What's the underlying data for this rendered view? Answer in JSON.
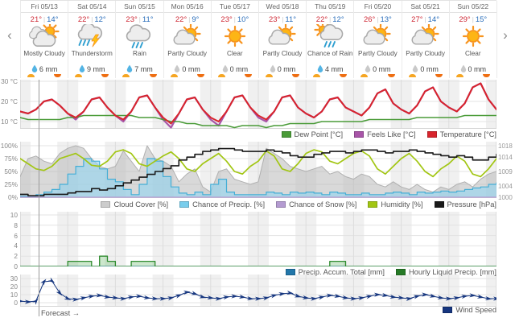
{
  "nav": {
    "prev": "‹",
    "next": "›"
  },
  "labels": {
    "forecast_marker": "Forecast →"
  },
  "colors": {
    "high_temp": "#cf2a36",
    "low_temp": "#2a6ebb",
    "night_band": "#f0f0f0",
    "now_line": "#9a9a9a",
    "sunrise": "#f6a623",
    "sunset": "#ee6e12",
    "wet_droplet": "#53b4e4",
    "dry_droplet": "#c9c9c9"
  },
  "days": [
    {
      "date": "Fri 05/13",
      "high": "21°",
      "low": "14°",
      "icon": "mostly-cloudy",
      "condition": "Mostly Cloudy",
      "precip": "6 mm",
      "wet": true
    },
    {
      "date": "Sat 05/14",
      "high": "22°",
      "low": "12°",
      "icon": "thunderstorm",
      "condition": "Thunderstorm",
      "precip": "9 mm",
      "wet": true
    },
    {
      "date": "Sun 05/15",
      "high": "23°",
      "low": "11°",
      "icon": "rain",
      "condition": "Rain",
      "precip": "7 mm",
      "wet": true
    },
    {
      "date": "Mon 05/16",
      "high": "22°",
      "low": "9°",
      "icon": "partly-cloudy",
      "condition": "Partly Cloudy",
      "precip": "0 mm",
      "wet": false
    },
    {
      "date": "Tue 05/17",
      "high": "23°",
      "low": "10°",
      "icon": "clear",
      "condition": "Clear",
      "precip": "0 mm",
      "wet": false
    },
    {
      "date": "Wed 05/18",
      "high": "23°",
      "low": "11°",
      "icon": "partly-cloudy",
      "condition": "Partly Cloudy",
      "precip": "0 mm",
      "wet": false
    },
    {
      "date": "Thu 05/19",
      "high": "22°",
      "low": "12°",
      "icon": "chance-of-rain",
      "condition": "Chance of Rain",
      "precip": "4 mm",
      "wet": true
    },
    {
      "date": "Fri 05/20",
      "high": "26°",
      "low": "13°",
      "icon": "partly-cloudy",
      "condition": "Partly Cloudy",
      "precip": "0 mm",
      "wet": false
    },
    {
      "date": "Sat 05/21",
      "high": "27°",
      "low": "14°",
      "icon": "partly-cloudy",
      "condition": "Partly Cloudy",
      "precip": "0 mm",
      "wet": false
    },
    {
      "date": "Sun 05/22",
      "high": "29°",
      "low": "15°",
      "icon": "clear",
      "condition": "Clear",
      "precip": "0 mm",
      "wet": false
    }
  ],
  "legends": [
    [
      {
        "label": "Dew Point [°C]",
        "color": "#4a9b38"
      },
      {
        "label": "Feels Like [°C]",
        "color": "#a855a8"
      },
      {
        "label": "Temperature [°C]",
        "color": "#d8242c"
      }
    ],
    [
      {
        "label": "Cloud Cover [%]",
        "color": "#cccccc"
      },
      {
        "label": "Chance of Precip. [%]",
        "color": "#79cdec"
      },
      {
        "label": "Chance of Snow [%]",
        "color": "#b49bd1"
      },
      {
        "label": "Humidity [%]",
        "color": "#a2c613"
      },
      {
        "label": "Pressure [hPa]",
        "color": "#1a1a1a"
      }
    ],
    [
      {
        "label": "Precip. Accum. Total [mm]",
        "color": "#2277aa"
      },
      {
        "label": "Hourly Liquid Precip. [mm]",
        "color": "#267a26"
      }
    ],
    [
      {
        "label": "Wind Speed",
        "color": "#16367f"
      }
    ]
  ],
  "chart_data": [
    {
      "type": "line",
      "title": "Temperature / Feels Like / Dew Point",
      "x_axis": {
        "days": 10,
        "samples_per_day": 6,
        "unit": "4-hour steps"
      },
      "ylabel": "°C",
      "ylim": [
        6,
        30
      ],
      "left_ticks": [
        {
          "v": 30,
          "label": "30 °C"
        },
        {
          "v": 20,
          "label": "20 °C"
        },
        {
          "v": 10,
          "label": "10 °C"
        }
      ],
      "series": [
        {
          "name": "Feels Like [°C]",
          "color": "#a855a8",
          "style": "line",
          "width": 2.2,
          "values": [
            15,
            14,
            16,
            20,
            21,
            18,
            14,
            11,
            15,
            21,
            22,
            17,
            13,
            10,
            15,
            22,
            23,
            17,
            11,
            7,
            14,
            21,
            22,
            16,
            11,
            8,
            15,
            22,
            23,
            17,
            12,
            10,
            15,
            22,
            23,
            17,
            14,
            12,
            15,
            21,
            22,
            17,
            15,
            13,
            17,
            24,
            26,
            19,
            16,
            14,
            18,
            25,
            27,
            20,
            17,
            15,
            19,
            27,
            29,
            21,
            16
          ]
        },
        {
          "name": "Dew Point [°C]",
          "color": "#4a9b38",
          "style": "line",
          "width": 1.6,
          "values": [
            12,
            11,
            11,
            11,
            11,
            11,
            12,
            12,
            13,
            13,
            13,
            13,
            13,
            13,
            13,
            12,
            12,
            12,
            11,
            10,
            10,
            9,
            9,
            8,
            8,
            8,
            8,
            7,
            8,
            8,
            8,
            7,
            8,
            8,
            9,
            9,
            9,
            9,
            10,
            10,
            10,
            10,
            10,
            10,
            11,
            11,
            11,
            11,
            11,
            11,
            12,
            12,
            12,
            12,
            12,
            12,
            13,
            13,
            13,
            13,
            13
          ]
        },
        {
          "name": "Temperature [°C]",
          "color": "#d8242c",
          "style": "line",
          "width": 2,
          "values": [
            15,
            14,
            16,
            20,
            21,
            18,
            14,
            12,
            15,
            21,
            22,
            17,
            13,
            11,
            15,
            22,
            23,
            17,
            12,
            9,
            14,
            21,
            22,
            16,
            12,
            10,
            15,
            22,
            23,
            17,
            13,
            11,
            15,
            22,
            23,
            17,
            14,
            12,
            15,
            21,
            22,
            17,
            15,
            13,
            17,
            24,
            26,
            19,
            16,
            14,
            18,
            25,
            27,
            20,
            17,
            15,
            19,
            27,
            29,
            21,
            16
          ]
        }
      ]
    },
    {
      "type": "mixed",
      "title": "Cloud Cover / Chance of Precip. / Chance of Snow / Humidity / Pressure",
      "x_axis": {
        "days": 10,
        "samples_per_day": 6,
        "unit": "4-hour steps"
      },
      "ylim": [
        0,
        100
      ],
      "right_ylim": [
        1000,
        1018
      ],
      "left_ticks": [
        {
          "v": 100,
          "label": "100%"
        },
        {
          "v": 75,
          "label": "75%"
        },
        {
          "v": 50,
          "label": "50%"
        },
        {
          "v": 25,
          "label": "25%"
        },
        {
          "v": 0,
          "label": "0%"
        }
      ],
      "right_ticks": [
        {
          "v": 1018,
          "label": "1018"
        },
        {
          "v": 1014,
          "label": "1014"
        },
        {
          "v": 1009,
          "label": "1009"
        },
        {
          "v": 1004,
          "label": "1004"
        },
        {
          "v": 1000,
          "label": "1000"
        }
      ],
      "series": [
        {
          "name": "Cloud Cover [%]",
          "color": "#b0b0b0",
          "style": "area",
          "width": 1,
          "fill": "rgba(185,185,185,0.55)",
          "values": [
            40,
            75,
            80,
            70,
            65,
            85,
            95,
            100,
            95,
            75,
            60,
            55,
            60,
            90,
            70,
            50,
            100,
            75,
            70,
            60,
            30,
            45,
            55,
            20,
            10,
            50,
            55,
            35,
            30,
            25,
            30,
            95,
            85,
            75,
            60,
            55,
            50,
            55,
            60,
            45,
            50,
            40,
            35,
            45,
            40,
            25,
            20,
            30,
            20,
            15,
            25,
            15,
            10,
            20,
            15,
            25,
            30,
            20,
            35,
            45,
            50
          ]
        },
        {
          "name": "Chance of Precip. [%]",
          "color": "#45aed6",
          "style": "step-area",
          "width": 1.2,
          "fill": "rgba(150,212,238,0.65)",
          "values": [
            2,
            2,
            5,
            10,
            15,
            25,
            45,
            60,
            75,
            70,
            55,
            35,
            30,
            15,
            5,
            25,
            75,
            70,
            40,
            20,
            8,
            5,
            10,
            5,
            25,
            35,
            10,
            5,
            5,
            5,
            5,
            10,
            8,
            5,
            10,
            8,
            10,
            8,
            5,
            10,
            8,
            5,
            5,
            8,
            5,
            5,
            8,
            10,
            8,
            5,
            10,
            8,
            10,
            12,
            10,
            12,
            15,
            18,
            20,
            25,
            28
          ]
        },
        {
          "name": "Chance of Snow [%]",
          "color": "#b49bd1",
          "style": "line",
          "width": 1.2,
          "values": [
            0,
            0,
            0,
            0,
            0,
            0,
            0,
            0,
            0,
            0,
            0,
            0,
            0,
            0,
            0,
            0,
            0,
            0,
            0,
            0,
            0,
            0,
            0,
            0,
            0,
            0,
            0,
            0,
            0,
            0,
            0,
            0,
            0,
            0,
            0,
            0,
            0,
            0,
            0,
            0,
            0,
            0,
            0,
            0,
            0,
            0,
            0,
            0,
            0,
            0,
            0,
            0,
            0,
            0,
            0,
            0,
            0,
            0,
            0,
            0,
            0
          ]
        },
        {
          "name": "Humidity [%]",
          "color": "#a2c613",
          "style": "line",
          "width": 1.7,
          "values": [
            75,
            65,
            55,
            52,
            60,
            75,
            80,
            85,
            75,
            62,
            60,
            70,
            88,
            92,
            85,
            65,
            60,
            70,
            80,
            88,
            75,
            55,
            50,
            65,
            75,
            85,
            70,
            50,
            45,
            60,
            70,
            90,
            80,
            55,
            50,
            65,
            85,
            92,
            88,
            70,
            65,
            75,
            85,
            90,
            80,
            55,
            45,
            60,
            75,
            85,
            70,
            50,
            40,
            55,
            65,
            80,
            70,
            45,
            40,
            55,
            75
          ]
        },
        {
          "name": "Pressure [hPa]",
          "color": "#1a1a1a",
          "style": "step",
          "width": 1.6,
          "axis": "right",
          "values": [
            1001,
            1000.5,
            1000.5,
            1001,
            1001,
            1001,
            1001.5,
            1002,
            1002,
            1003,
            1002.5,
            1003,
            1004,
            1005,
            1006,
            1007,
            1008,
            1009,
            1010,
            1011,
            1013,
            1014,
            1015,
            1016,
            1016.5,
            1017,
            1017,
            1016.5,
            1016,
            1016,
            1016,
            1016.5,
            1016,
            1015.5,
            1014.5,
            1014,
            1014,
            1015,
            1015.5,
            1016,
            1016,
            1015.5,
            1016,
            1016.5,
            1016.5,
            1016,
            1015.5,
            1016,
            1016,
            1016.5,
            1016,
            1015.5,
            1015,
            1014.5,
            1014,
            1014.5,
            1014,
            1013,
            1013,
            1014,
            1015
          ]
        }
      ]
    },
    {
      "type": "area",
      "title": "Precipitation",
      "x_axis": {
        "days": 10,
        "samples_per_day": 6,
        "unit": "4-hour steps"
      },
      "ylabel": "mm",
      "ylim": [
        0,
        10
      ],
      "left_ticks": [
        {
          "v": 10,
          "label": "10"
        },
        {
          "v": 8,
          "label": "8"
        },
        {
          "v": 6,
          "label": "6"
        },
        {
          "v": 4,
          "label": "4"
        },
        {
          "v": 2,
          "label": "2"
        },
        {
          "v": 0,
          "label": "0"
        }
      ],
      "series": [
        {
          "name": "Precip. Accum. Total [mm]",
          "color": "#2277aa",
          "style": "line",
          "width": 1.2,
          "values": [
            0,
            0,
            0,
            0,
            0,
            0,
            0,
            0,
            0,
            0,
            0,
            0,
            0,
            0,
            0,
            0,
            0,
            0,
            0,
            0,
            0,
            0,
            0,
            0,
            0,
            0,
            0,
            0,
            0,
            0,
            0,
            0,
            0,
            0,
            0,
            0,
            0,
            0,
            0,
            0,
            0,
            0,
            0,
            0,
            0,
            0,
            0,
            0,
            0,
            0,
            0,
            0,
            0,
            0,
            0,
            0,
            0,
            0,
            0,
            0,
            0
          ]
        },
        {
          "name": "Hourly Liquid Precip. [mm]",
          "color": "#2e8b2e",
          "style": "step-area",
          "width": 1.3,
          "fill": "rgba(110,185,110,0.35)",
          "values": [
            0,
            0,
            0,
            0,
            0,
            0,
            1,
            1,
            1,
            0,
            2,
            1,
            0,
            0,
            1,
            1,
            1,
            0,
            0,
            0,
            0,
            0,
            0,
            0,
            0,
            0,
            0,
            0,
            0,
            0,
            0,
            0,
            0,
            0,
            0,
            0,
            0,
            0,
            0,
            1,
            1,
            0,
            0,
            0,
            0,
            0,
            0,
            0,
            0,
            0,
            0,
            0,
            0,
            0,
            0,
            0,
            0,
            0,
            0,
            0,
            0
          ]
        }
      ]
    },
    {
      "type": "line",
      "title": "Wind Speed",
      "x_axis": {
        "days": 10,
        "samples_per_day": 6,
        "unit": "4-hour steps"
      },
      "ylim": [
        0,
        35
      ],
      "left_ticks": [
        {
          "v": 30,
          "label": "30"
        },
        {
          "v": 20,
          "label": "20"
        },
        {
          "v": 10,
          "label": "10"
        },
        {
          "v": 0,
          "label": "0"
        }
      ],
      "series": [
        {
          "name": "Wind Speed",
          "color": "#16367f",
          "style": "line",
          "width": 1,
          "markers": "arrow",
          "values": [
            2,
            1,
            2,
            26,
            27,
            12,
            5,
            4,
            6,
            8,
            9,
            7,
            6,
            5,
            7,
            8,
            6,
            5,
            5,
            6,
            9,
            13,
            11,
            7,
            6,
            5,
            7,
            8,
            7,
            5,
            5,
            6,
            9,
            11,
            12,
            8,
            6,
            5,
            7,
            9,
            8,
            6,
            5,
            6,
            8,
            10,
            9,
            7,
            6,
            5,
            8,
            10,
            8,
            6,
            5,
            6,
            8,
            9,
            7,
            5,
            5
          ]
        }
      ]
    }
  ]
}
